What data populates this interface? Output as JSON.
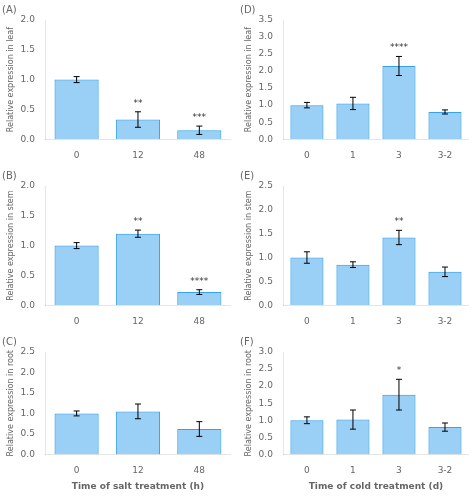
{
  "chart_data": [
    {
      "type": "bar",
      "title": "(A)",
      "categories": [
        "0",
        "12",
        "48"
      ],
      "values": [
        1.0,
        0.33,
        0.15
      ],
      "errors": [
        0.05,
        0.13,
        0.07
      ],
      "annotations": [
        {
          "category": "12",
          "text": "**"
        },
        {
          "category": "48",
          "text": "***"
        }
      ],
      "ylabel": "Relative expression in leaf",
      "ylim": [
        0,
        2.0
      ],
      "yticks": [
        {
          "value": 0,
          "label": "0.0"
        },
        0.5,
        {
          "value": 1,
          "label": "1.0"
        },
        1.5,
        {
          "value": 2,
          "label": "2.0"
        }
      ],
      "grid": false
    },
    {
      "type": "bar",
      "title": "(B)",
      "categories": [
        "0",
        "12",
        "48"
      ],
      "values": [
        1.0,
        1.2,
        0.22
      ],
      "errors": [
        0.05,
        0.06,
        0.04
      ],
      "annotations": [
        {
          "category": "12",
          "text": "**"
        },
        {
          "category": "48",
          "text": "****"
        }
      ],
      "ylabel": "Relative expression in stem",
      "ylim": [
        0,
        2.0
      ],
      "yticks": [
        {
          "value": 0,
          "label": "0.0"
        },
        0.5,
        {
          "value": 1,
          "label": "1.0"
        },
        1.5,
        {
          "value": 2,
          "label": "2.0"
        }
      ],
      "grid": false
    },
    {
      "type": "bar",
      "title": "(C)",
      "categories": [
        "0",
        "12",
        "48"
      ],
      "values": [
        1.0,
        1.05,
        0.62
      ],
      "errors": [
        0.06,
        0.18,
        0.18
      ],
      "ylabel": "Relative expression in root",
      "xlabel": "Time of salt treatment (h)",
      "ylim": [
        0,
        2.5
      ],
      "yticks": [
        {
          "value": 0,
          "label": "0.0"
        },
        0.5,
        {
          "value": 1,
          "label": "1.0"
        },
        1.5,
        {
          "value": 2,
          "label": "2.0"
        },
        2.5
      ],
      "grid": false
    },
    {
      "type": "bar",
      "title": "(D)",
      "categories": [
        "0",
        "1",
        "3",
        "3-2"
      ],
      "values": [
        1.0,
        1.05,
        2.15,
        0.8
      ],
      "errors": [
        0.08,
        0.18,
        0.28,
        0.06
      ],
      "annotations": [
        {
          "category": "3",
          "text": "****"
        }
      ],
      "ylabel": "Relative expression in leaf",
      "ylim": [
        0,
        3.5
      ],
      "yticks": [
        {
          "value": 0,
          "label": "0.0"
        },
        0.5,
        {
          "value": 1,
          "label": "1.0"
        },
        1.5,
        {
          "value": 2,
          "label": "2.0"
        },
        2.5,
        {
          "value": 3,
          "label": "3.0"
        },
        3.5
      ],
      "grid": false
    },
    {
      "type": "bar",
      "title": "(E)",
      "categories": [
        "0",
        "1",
        "3",
        "3-2"
      ],
      "values": [
        1.0,
        0.85,
        1.42,
        0.7
      ],
      "errors": [
        0.12,
        0.06,
        0.15,
        0.1
      ],
      "annotations": [
        {
          "category": "3",
          "text": "**"
        }
      ],
      "ylabel": "Relative expression in stem",
      "ylim": [
        0,
        2.5
      ],
      "yticks": [
        {
          "value": 0,
          "label": "0.0"
        },
        0.5,
        {
          "value": 1,
          "label": "1.0"
        },
        1.5,
        {
          "value": 2,
          "label": "2.0"
        },
        2.5
      ],
      "grid": false
    },
    {
      "type": "bar",
      "title": "(F)",
      "categories": [
        "0",
        "1",
        "3",
        "3-2"
      ],
      "values": [
        1.0,
        1.02,
        1.75,
        0.8
      ],
      "errors": [
        0.1,
        0.28,
        0.45,
        0.12
      ],
      "annotations": [
        {
          "category": "3",
          "text": "*"
        }
      ],
      "ylabel": "Relative expression in root",
      "xlabel": "Time of cold treatment (d)",
      "ylim": [
        0,
        3.0
      ],
      "yticks": [
        {
          "value": 0,
          "label": "0.0"
        },
        0.5,
        {
          "value": 1,
          "label": "1.0"
        },
        1.5,
        {
          "value": 2,
          "label": "2.0"
        },
        2.5,
        {
          "value": 3,
          "label": "3.0"
        }
      ],
      "grid": false
    }
  ]
}
